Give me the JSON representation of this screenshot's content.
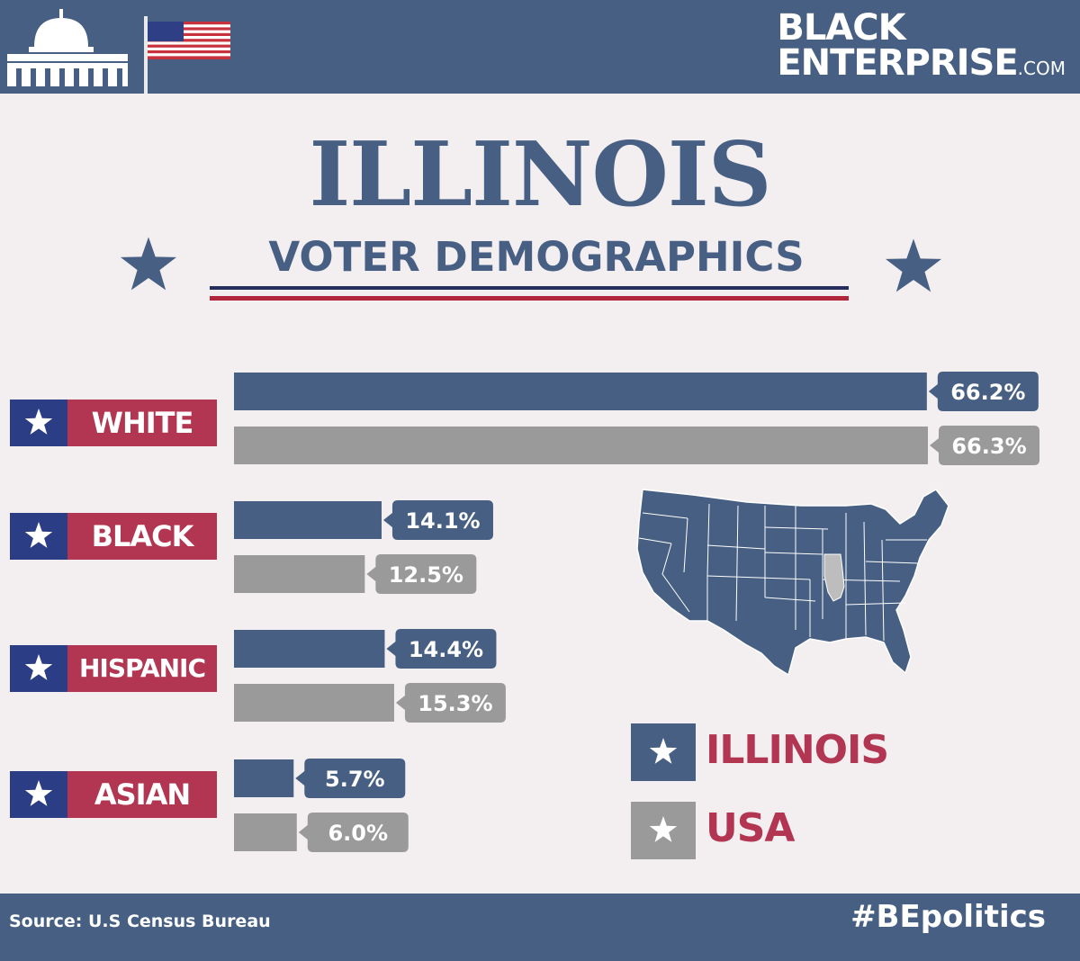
{
  "brand": {
    "line1": "BLACK",
    "line2": "ENTERPRISE",
    "suffix": ".COM"
  },
  "title": "ILLINOIS",
  "subtitle": "VOTER DEMOGRAPHICS",
  "colors": {
    "illinois": "#465f83",
    "usa": "#9a9a9a",
    "accent_red": "#b23651",
    "accent_blue": "#2b3d85"
  },
  "chart_data": {
    "type": "bar",
    "title": "ILLINOIS",
    "subtitle": "VOTER DEMOGRAPHICS",
    "categories": [
      "WHITE",
      "BLACK",
      "HISPANIC",
      "ASIAN"
    ],
    "series": [
      {
        "name": "ILLINOIS",
        "values": [
          66.2,
          14.1,
          14.4,
          5.7
        ],
        "labels": [
          "66.2%",
          "14.1%",
          "14.4%",
          "5.7%"
        ]
      },
      {
        "name": "USA",
        "values": [
          66.3,
          12.5,
          15.3,
          6.0
        ],
        "labels": [
          "66.3%",
          "12.5%",
          "15.3%",
          "6.0%"
        ]
      }
    ],
    "xlim": [
      0,
      66.3
    ],
    "grid": false,
    "legend": "bottom-right"
  },
  "legend": {
    "illinois": "ILLINOIS",
    "usa": "USA"
  },
  "footer": {
    "source": "Source: U.S Census Bureau",
    "hashtag": "#BEpolitics"
  },
  "icons": {
    "header_left": "capitol-building-icon",
    "flag": "us-flag-icon",
    "map": "us-map-icon",
    "star": "star-icon"
  }
}
